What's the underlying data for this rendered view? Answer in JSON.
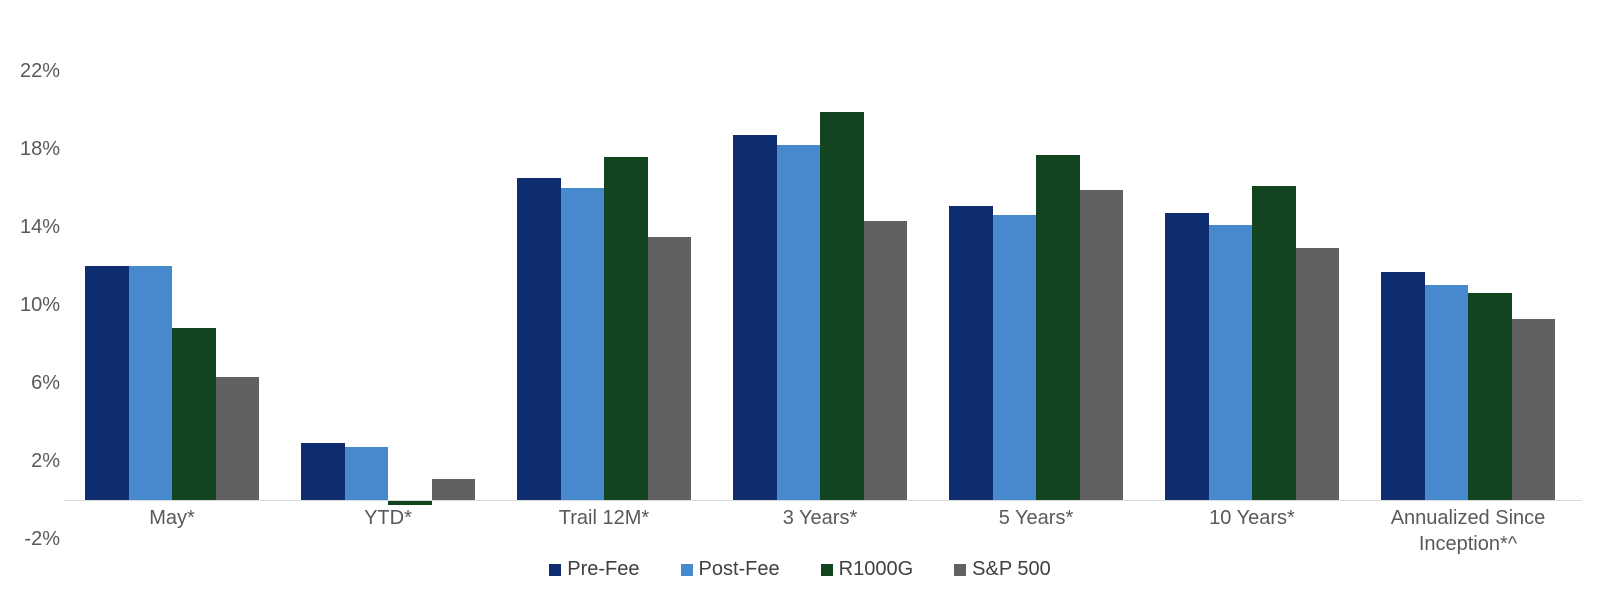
{
  "chart_data": {
    "type": "bar",
    "title": "",
    "xlabel": "",
    "ylabel": "",
    "grid": false,
    "legend_position": "bottom",
    "axis_line_color": "#d9d9d9",
    "tick_label_color": "#595959",
    "legend_text_color": "#404040",
    "ylim": [
      -2,
      22
    ],
    "y_ticks": [
      "22%",
      "18%",
      "14%",
      "10%",
      "6%",
      "2%",
      "-2%"
    ],
    "y_tick_values": [
      22,
      18,
      14,
      10,
      6,
      2,
      -2
    ],
    "categories": [
      "May*",
      "YTD*",
      "Trail 12M*",
      "3 Years*",
      "5 Years*",
      "10 Years*",
      "Annualized Since Inception*^"
    ],
    "series": [
      {
        "name": "Pre-Fee",
        "color": "#0e2c6e",
        "values": [
          12.0,
          2.9,
          16.5,
          18.7,
          15.1,
          14.7,
          11.7
        ]
      },
      {
        "name": "Post-Fee",
        "color": "#4689cd",
        "values": [
          12.0,
          2.7,
          16.0,
          18.2,
          14.6,
          14.1,
          11.0
        ]
      },
      {
        "name": "R1000G",
        "color": "#124420",
        "values": [
          8.8,
          -0.2,
          17.6,
          19.9,
          17.7,
          16.1,
          10.6
        ]
      },
      {
        "name": "S&P 500",
        "color": "#616161",
        "values": [
          6.3,
          1.1,
          13.5,
          14.3,
          15.9,
          12.9,
          9.3
        ]
      }
    ]
  }
}
